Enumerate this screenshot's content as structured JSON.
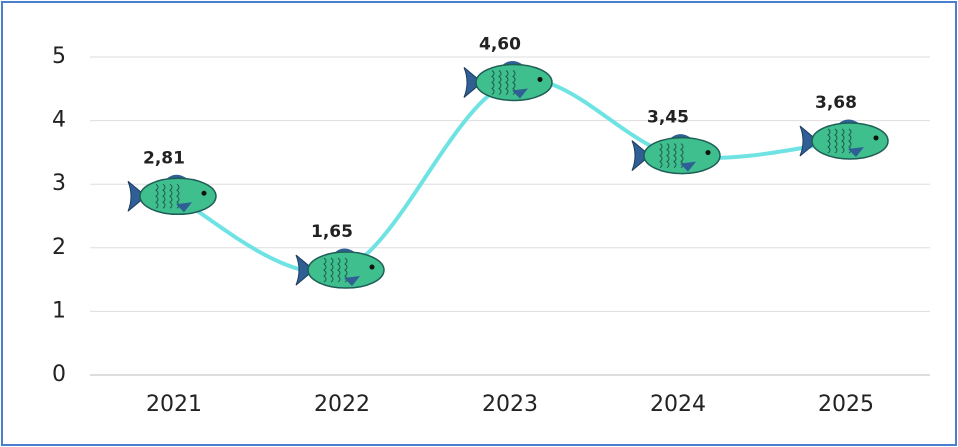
{
  "chart_data": {
    "type": "line",
    "categories": [
      "2021",
      "2022",
      "2023",
      "2024",
      "2025"
    ],
    "values": [
      2.81,
      1.65,
      4.6,
      3.45,
      3.68
    ],
    "value_labels": [
      "2,81",
      "1,65",
      "4,60",
      "3,45",
      "3,68"
    ],
    "color": "#6fe3e3",
    "ylim": [
      0,
      5
    ],
    "yticks": [
      0,
      1,
      2,
      3,
      4,
      5
    ],
    "grid": true
  }
}
